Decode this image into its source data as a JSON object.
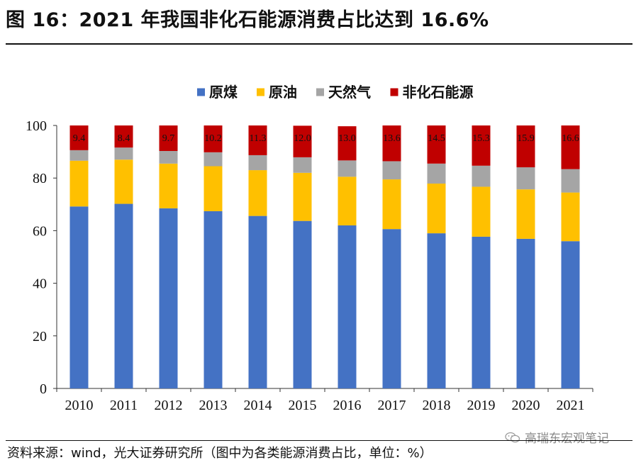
{
  "header": {
    "title": "图 16：2021 年我国非化石能源消费占比达到 16.6%"
  },
  "footer": {
    "source": "资料来源：wind，光大证券研究所（图中为各类能源消费占比，单位：%）"
  },
  "watermark": {
    "text": "高瑞东宏观笔记",
    "icon": "wechat-icon"
  },
  "chart_data": {
    "type": "bar",
    "stacked": true,
    "title": "",
    "xlabel": "",
    "ylabel": "",
    "ylim": [
      0,
      100
    ],
    "yticks": [
      0,
      20,
      40,
      60,
      80,
      100
    ],
    "categories": [
      "2010",
      "2011",
      "2012",
      "2013",
      "2014",
      "2015",
      "2016",
      "2017",
      "2018",
      "2019",
      "2020",
      "2021"
    ],
    "legend_position": "top",
    "series": [
      {
        "name": "原煤",
        "color": "#4472C4",
        "values": [
          69.2,
          70.2,
          68.5,
          67.4,
          65.6,
          63.7,
          62.0,
          60.6,
          59.0,
          57.7,
          56.9,
          56.0
        ]
      },
      {
        "name": "原油",
        "color": "#FFC000",
        "values": [
          17.4,
          16.8,
          17.0,
          17.1,
          17.4,
          18.3,
          18.5,
          18.9,
          18.9,
          19.0,
          18.8,
          18.5
        ]
      },
      {
        "name": "天然气",
        "color": "#A5A5A5",
        "values": [
          4.0,
          4.6,
          4.8,
          5.3,
          5.7,
          5.9,
          6.2,
          6.9,
          7.6,
          8.0,
          8.4,
          8.9
        ]
      },
      {
        "name": "非化石能源",
        "color": "#C00000",
        "values": [
          9.4,
          8.4,
          9.7,
          10.2,
          11.3,
          12.0,
          13.0,
          13.6,
          14.5,
          15.3,
          15.9,
          16.6
        ]
      }
    ],
    "data_labels": {
      "series": "非化石能源",
      "values": [
        "9.4",
        "8.4",
        "9.7",
        "10.2",
        "11.3",
        "12.0",
        "13.0",
        "13.6",
        "14.5",
        "15.3",
        "15.9",
        "16.6"
      ]
    }
  }
}
